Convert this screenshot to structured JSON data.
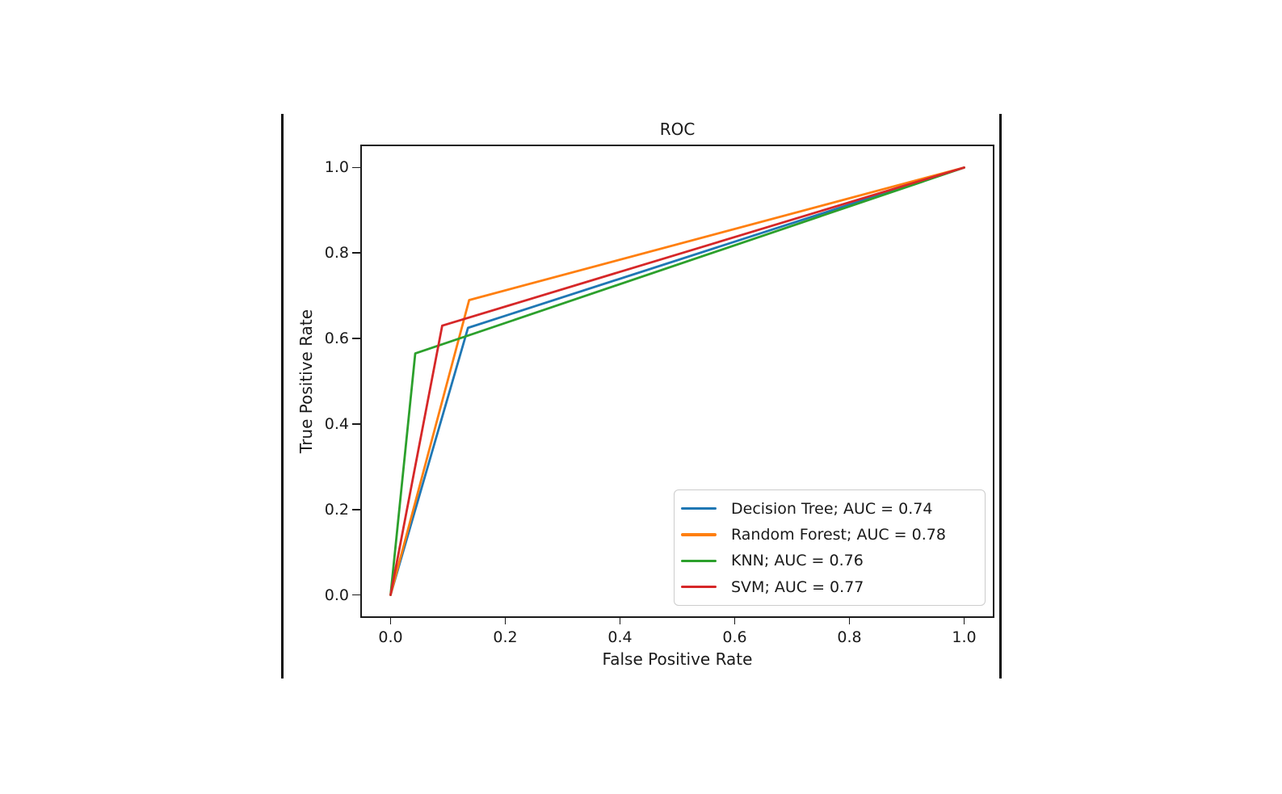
{
  "chart_data": {
    "type": "line",
    "title": "ROC",
    "xlabel": "False Positive Rate",
    "ylabel": "True Positive Rate",
    "xlim": [
      -0.05,
      1.05
    ],
    "ylim": [
      -0.05,
      1.05
    ],
    "grid": false,
    "legend_position": "lower right",
    "xticks": {
      "values": [
        0,
        0.2,
        0.4,
        0.6,
        0.8,
        1.0
      ],
      "labels": [
        "0.0",
        "0.2",
        "0.4",
        "0.6",
        "0.8",
        "1.0"
      ]
    },
    "yticks": {
      "values": [
        0,
        0.2,
        0.4,
        0.6,
        0.8,
        1.0
      ],
      "labels": [
        "0.0",
        "0.2",
        "0.4",
        "0.6",
        "0.8",
        "1.0"
      ]
    },
    "series": [
      {
        "name": "Decision Tree",
        "auc": 0.74,
        "legend_label": "Decision Tree; AUC = 0.74",
        "color": "#1f77b4",
        "x": [
          0,
          0.135,
          1
        ],
        "y": [
          0,
          0.625,
          1
        ]
      },
      {
        "name": "Random Forest",
        "auc": 0.78,
        "legend_label": "Random Forest; AUC = 0.78",
        "color": "#ff7f0e",
        "x": [
          0,
          0.137,
          1
        ],
        "y": [
          0,
          0.69,
          1
        ]
      },
      {
        "name": "KNN",
        "auc": 0.76,
        "legend_label": "KNN; AUC = 0.76",
        "color": "#2ca02c",
        "x": [
          0,
          0.043,
          1
        ],
        "y": [
          0,
          0.565,
          1
        ]
      },
      {
        "name": "SVM",
        "auc": 0.77,
        "legend_label": "SVM; AUC = 0.77",
        "color": "#d62728",
        "x": [
          0,
          0.09,
          1
        ],
        "y": [
          0,
          0.63,
          1
        ]
      }
    ]
  }
}
